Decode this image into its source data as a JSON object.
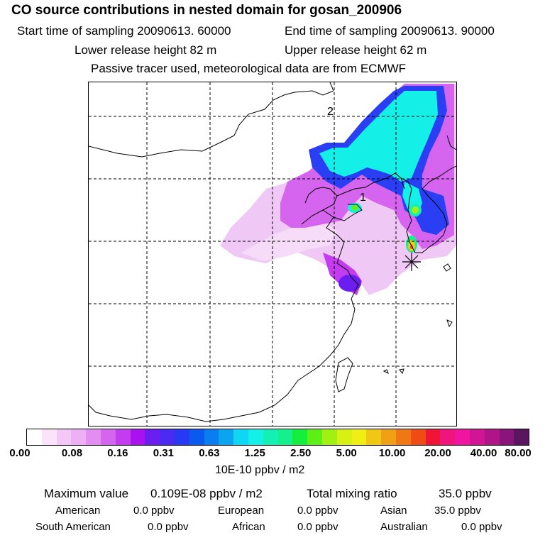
{
  "header": {
    "title": "CO  source contributions in nested domain for gosan_200906",
    "start_time": "Start time of sampling 20090613. 60000",
    "end_time": "End time of sampling 20090613. 90000",
    "lower_release": "Lower release height   82 m",
    "upper_release": "Upper release height   62 m",
    "tracer_note": "Passive tracer used, meteorological data are from ECMWF"
  },
  "map": {
    "grid_labels": [
      "2",
      "1"
    ],
    "station_marker": "asterisk-icon"
  },
  "colorbar": {
    "colors": [
      "#ffffff",
      "#fbe3fb",
      "#f4c8f6",
      "#eeb0f4",
      "#e38cf1",
      "#d565ee",
      "#c43cef",
      "#a912ee",
      "#6c1df0",
      "#4a2bf2",
      "#263af3",
      "#0a5af0",
      "#0a7ef0",
      "#0aa4f0",
      "#0fd6f5",
      "#14f0e8",
      "#14f0b4",
      "#14f08c",
      "#14ee3c",
      "#5ef014",
      "#a0f014",
      "#d8f014",
      "#f0ee14",
      "#f0c814",
      "#f0a014",
      "#f07814",
      "#f04b14",
      "#f01437",
      "#f0147d",
      "#f014a0",
      "#d21496",
      "#b01488",
      "#8a147a",
      "#5a1460"
    ],
    "ticks": [
      "0.00",
      "0.08",
      "0.16",
      "0.31",
      "0.63",
      "1.25",
      "2.50",
      "5.00",
      "10.00",
      "20.00",
      "40.00",
      "80.00"
    ],
    "units": "10E-10 ppbv / m2"
  },
  "summary": {
    "max_label": "Maximum value",
    "max_value": "0.109E-08 ppbv / m2",
    "total_label": "Total mixing ratio",
    "total_value": "35.0 ppbv",
    "regions": [
      {
        "name": "American",
        "value": "0.0 ppbv"
      },
      {
        "name": "European",
        "value": "0.0 ppbv"
      },
      {
        "name": "Asian",
        "value": "35.0 ppbv"
      },
      {
        "name": "South American",
        "value": "0.0 ppbv"
      },
      {
        "name": "African",
        "value": "0.0 ppbv"
      },
      {
        "name": "Australian",
        "value": "0.0 ppbv"
      }
    ]
  }
}
